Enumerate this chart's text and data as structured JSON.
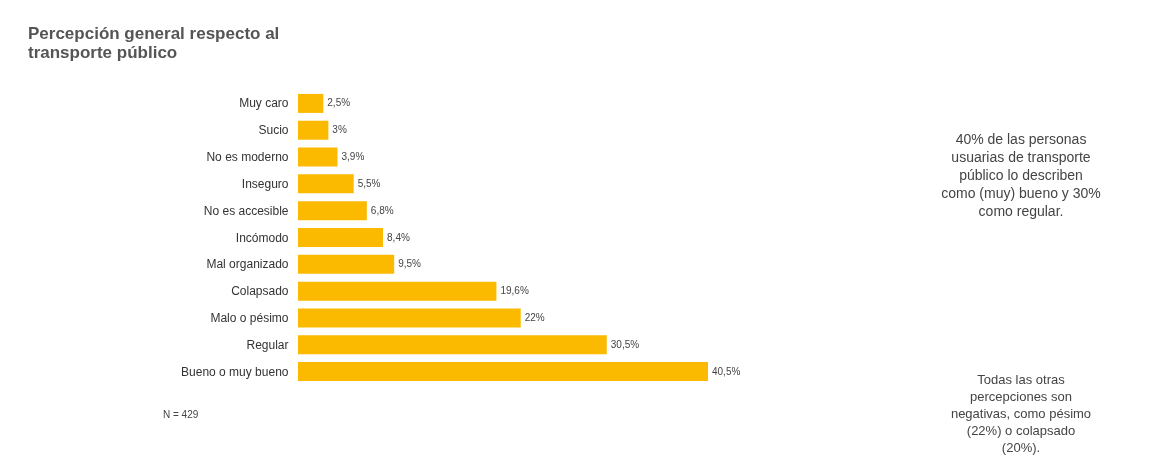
{
  "chart_data": {
    "type": "bar",
    "orientation": "horizontal",
    "title": "Percepción general respecto al transporte público",
    "categories": [
      "Muy caro",
      "Sucio",
      "No es moderno",
      "Inseguro",
      "No es accesible",
      "Incómodo",
      "Mal organizado",
      "Colapsado",
      "Malo o pésimo",
      "Regular",
      "Bueno o muy bueno"
    ],
    "values": [
      2.5,
      3,
      3.9,
      5.5,
      6.8,
      8.4,
      9.5,
      19.6,
      22,
      30.5,
      40.5
    ],
    "value_labels": [
      "2,5%",
      "3%",
      "3,9%",
      "5,5%",
      "6,8%",
      "8,4%",
      "9,5%",
      "19,6%",
      "22%",
      "30,5%",
      "40,5%"
    ],
    "color": "#fbb900",
    "annotations": [
      "40% de las personas usuarias de transporte público lo describen como (muy) bueno y 30% como regular.",
      "Todas las otras percepciones son negativas, como pésimo (22%) o colapsado (20%).",
      "N = 429"
    ]
  }
}
